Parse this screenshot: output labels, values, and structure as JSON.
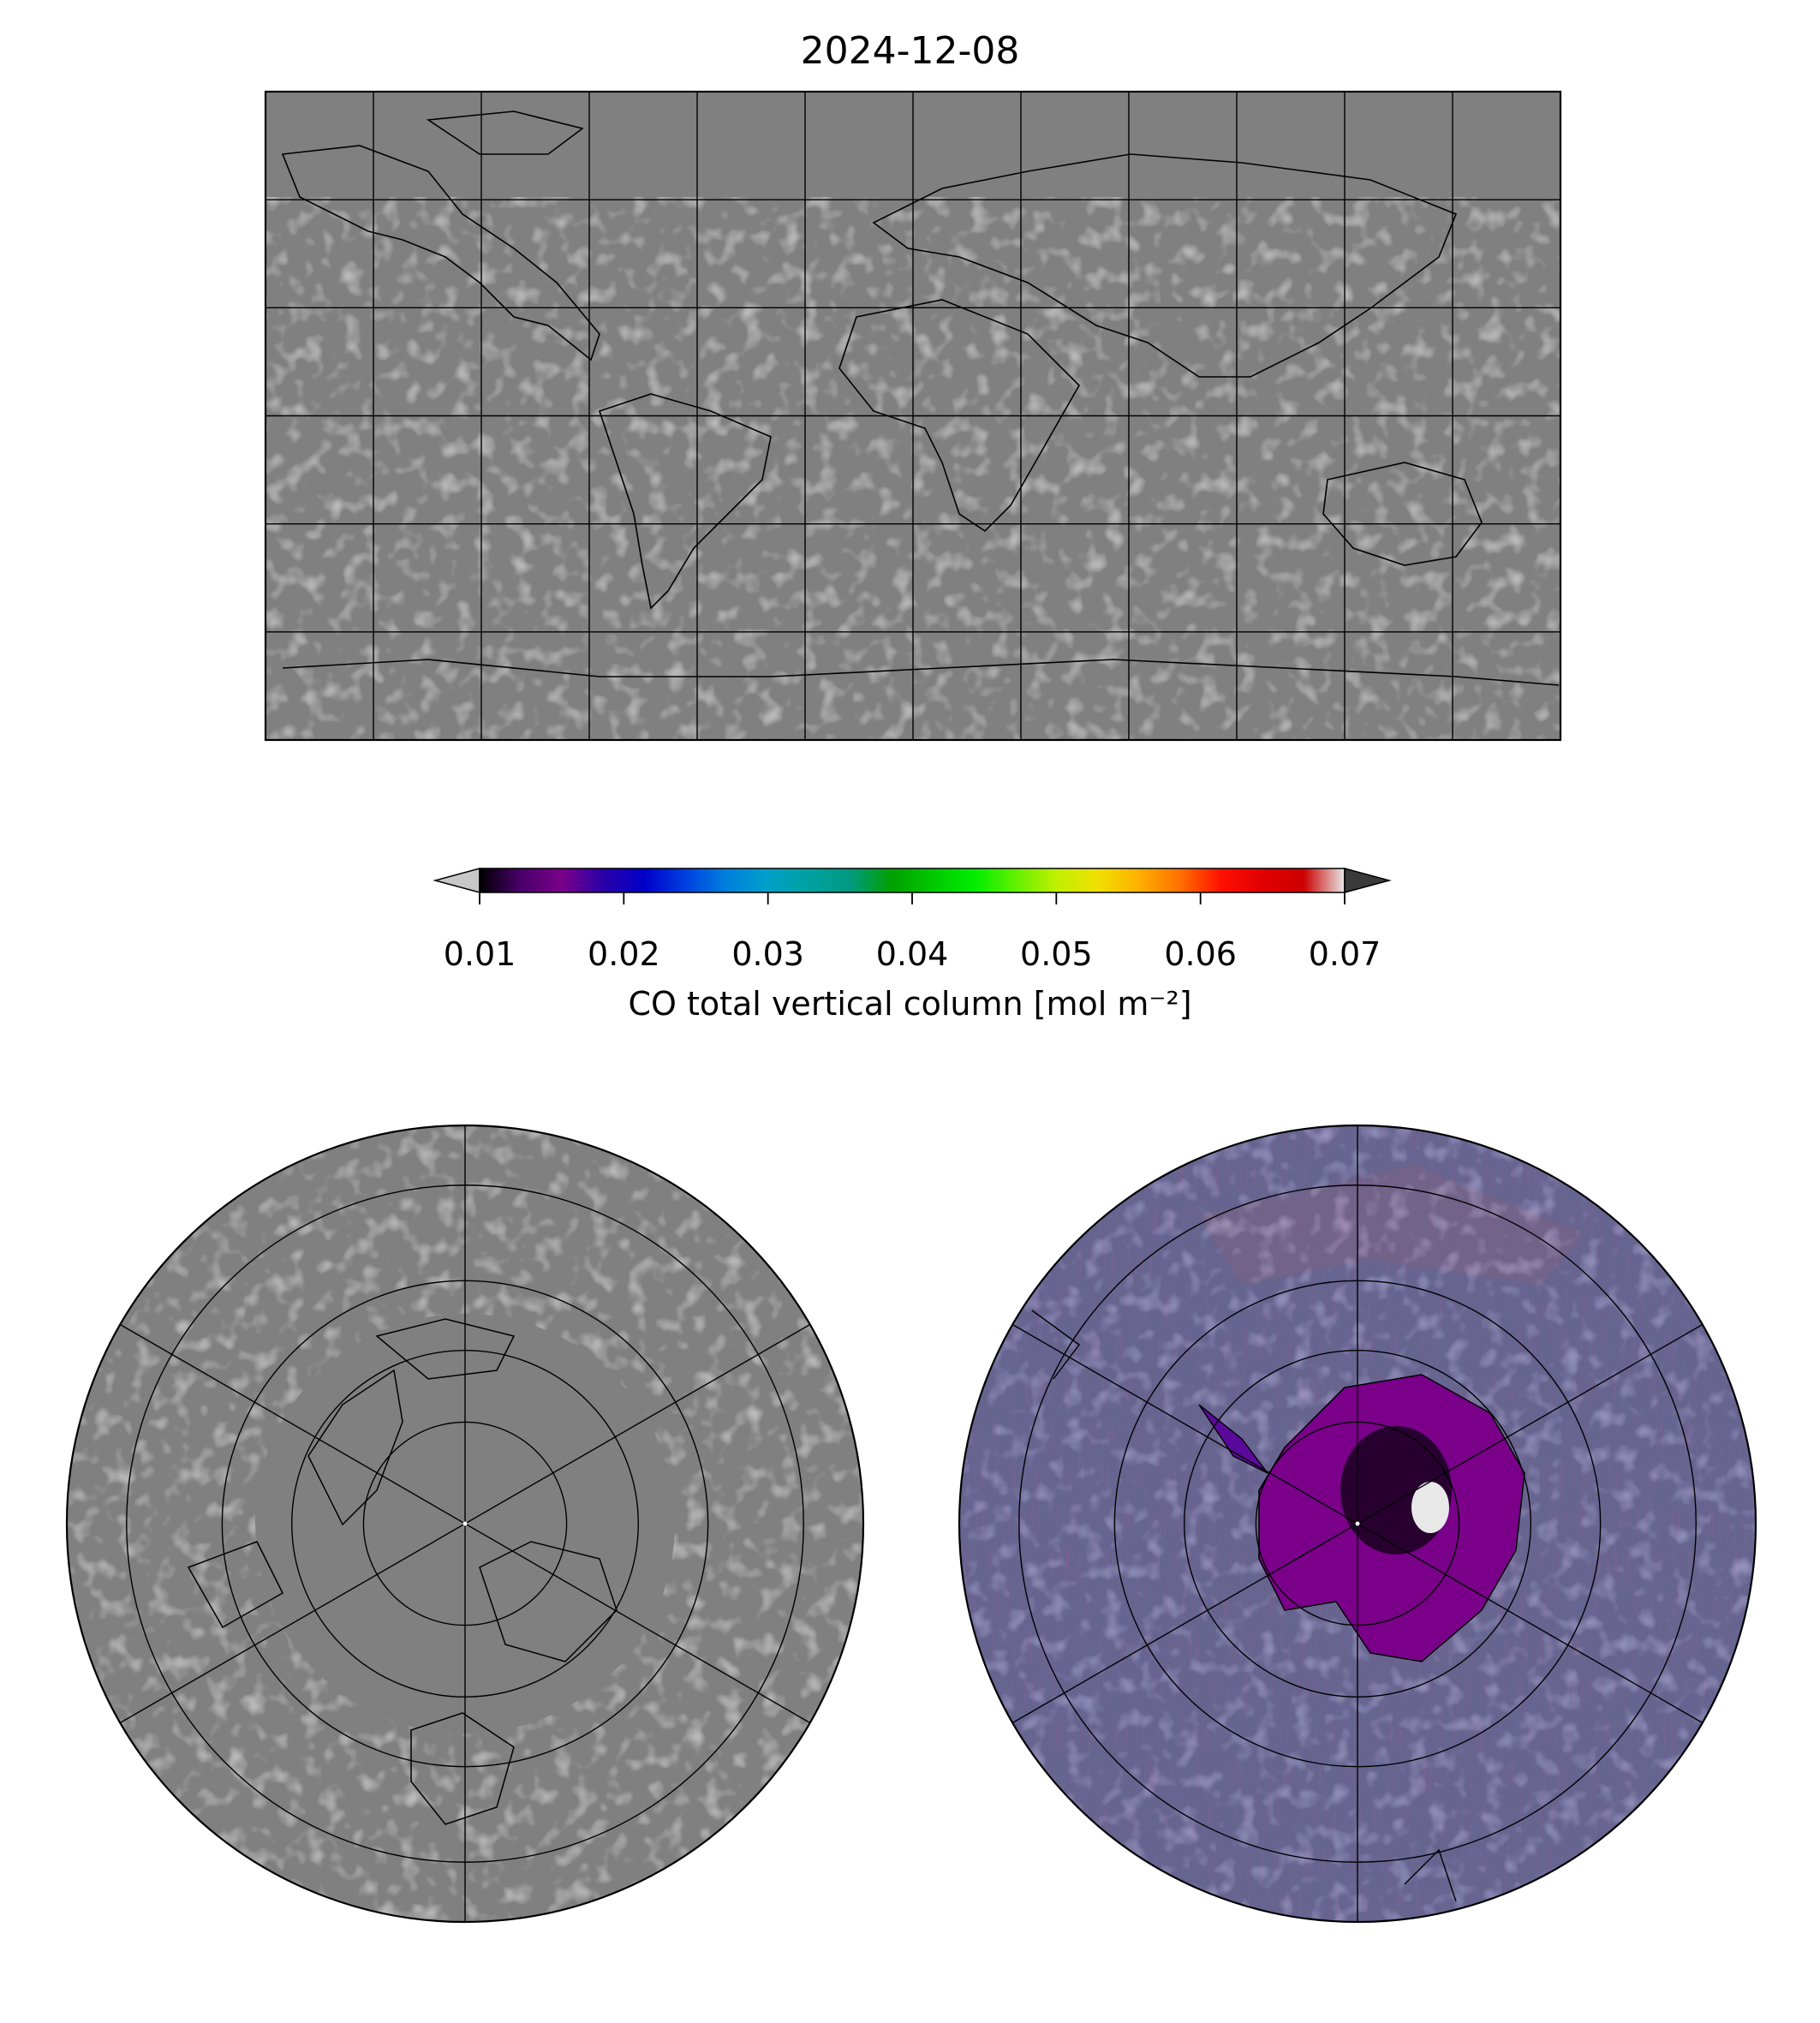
{
  "figure": {
    "title": "2024-12-08"
  },
  "maps": [
    {
      "id": "global",
      "projection": "plate-carree",
      "lat_range": [
        -90,
        90
      ],
      "lon_range": [
        -180,
        180
      ],
      "gridline_interval_deg": 30
    },
    {
      "id": "north-polar",
      "projection": "north-polar-stereographic",
      "center": "North Pole"
    },
    {
      "id": "south-polar",
      "projection": "south-polar-stereographic",
      "center": "South Pole"
    }
  ],
  "colorbar": {
    "label": "CO total vertical column [mol m⁻²]",
    "vmin": 0.01,
    "vmax": 0.07,
    "ticks": [
      "0.01",
      "0.02",
      "0.03",
      "0.04",
      "0.05",
      "0.06",
      "0.07"
    ],
    "extend": "both",
    "under_color": "#c8c8c8",
    "over_color": "#3a3a3a",
    "colors": [
      "#000000",
      "#4a006a",
      "#7a008a",
      "#2a00a8",
      "#0000c8",
      "#0040e0",
      "#0080dd",
      "#00a0c8",
      "#00a0a0",
      "#009a80",
      "#00a000",
      "#00c800",
      "#00ee00",
      "#60f000",
      "#c0f000",
      "#f0e000",
      "#ffb000",
      "#ff7000",
      "#ff1000",
      "#e00000",
      "#cc0000",
      "#e8e8e8"
    ]
  },
  "colors": {
    "missing_data": "#808080",
    "coastline": "#000000",
    "gridline": "#000000"
  }
}
